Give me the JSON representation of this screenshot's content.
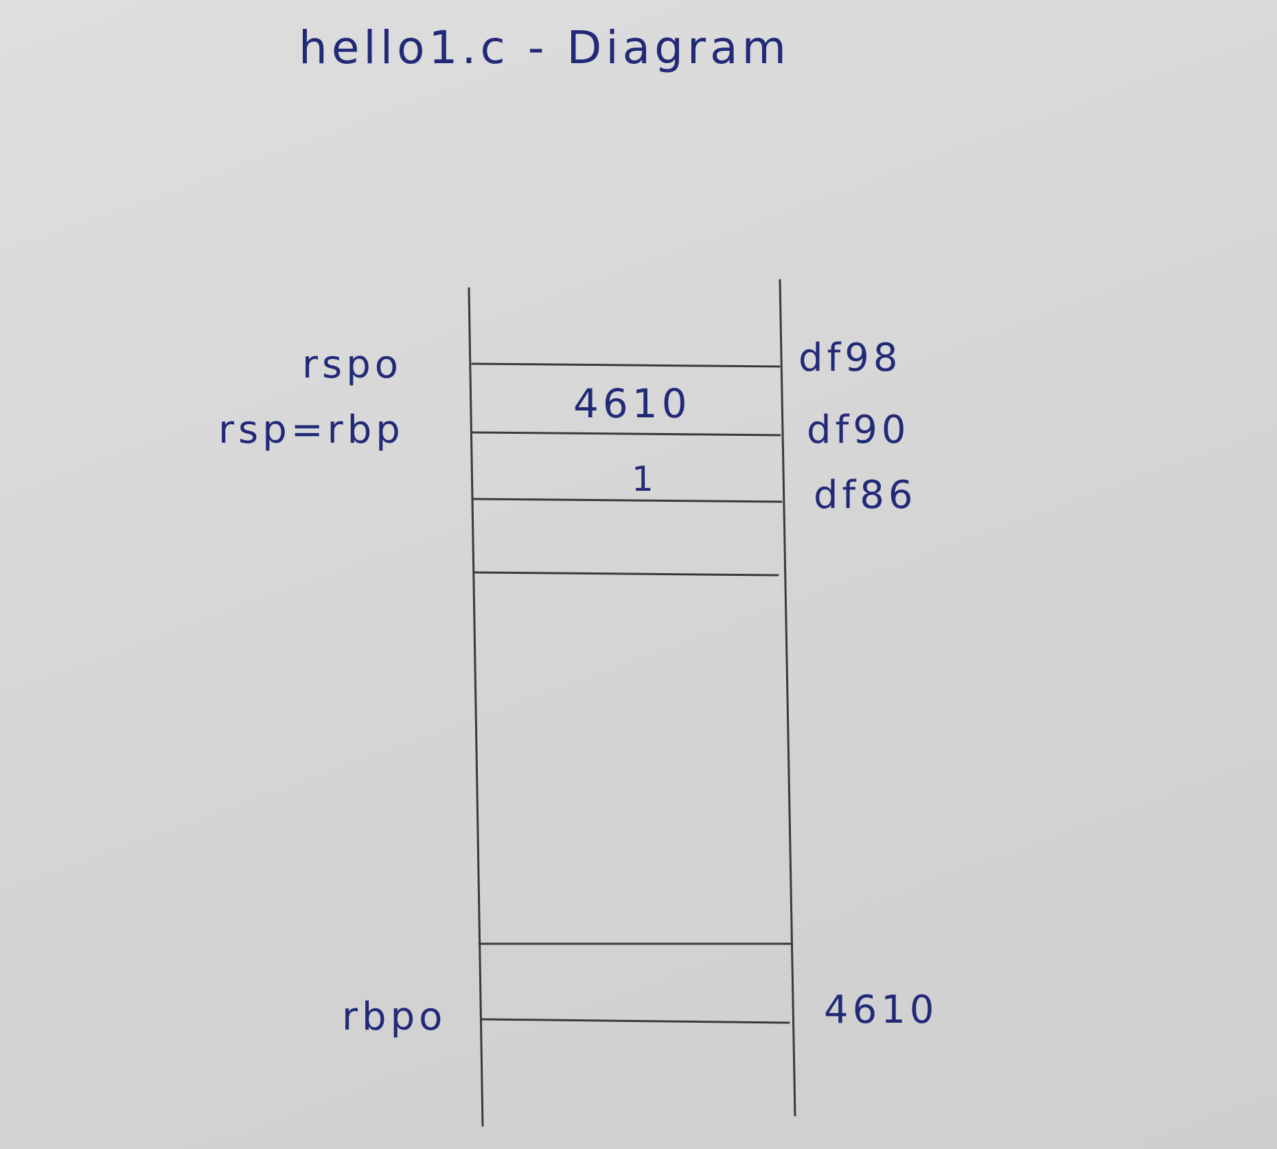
{
  "title": "hello1.c - Diagram",
  "left_labels": [
    "rspo",
    "rsp=rbp",
    "rbpo"
  ],
  "cell_values": [
    "4610",
    "1"
  ],
  "right_labels": [
    "df98",
    "df90",
    "df86",
    "4610"
  ],
  "colors": {
    "ink": "#222a78",
    "pencil": "#3a3a3a",
    "paper": "#d8d8d8"
  }
}
